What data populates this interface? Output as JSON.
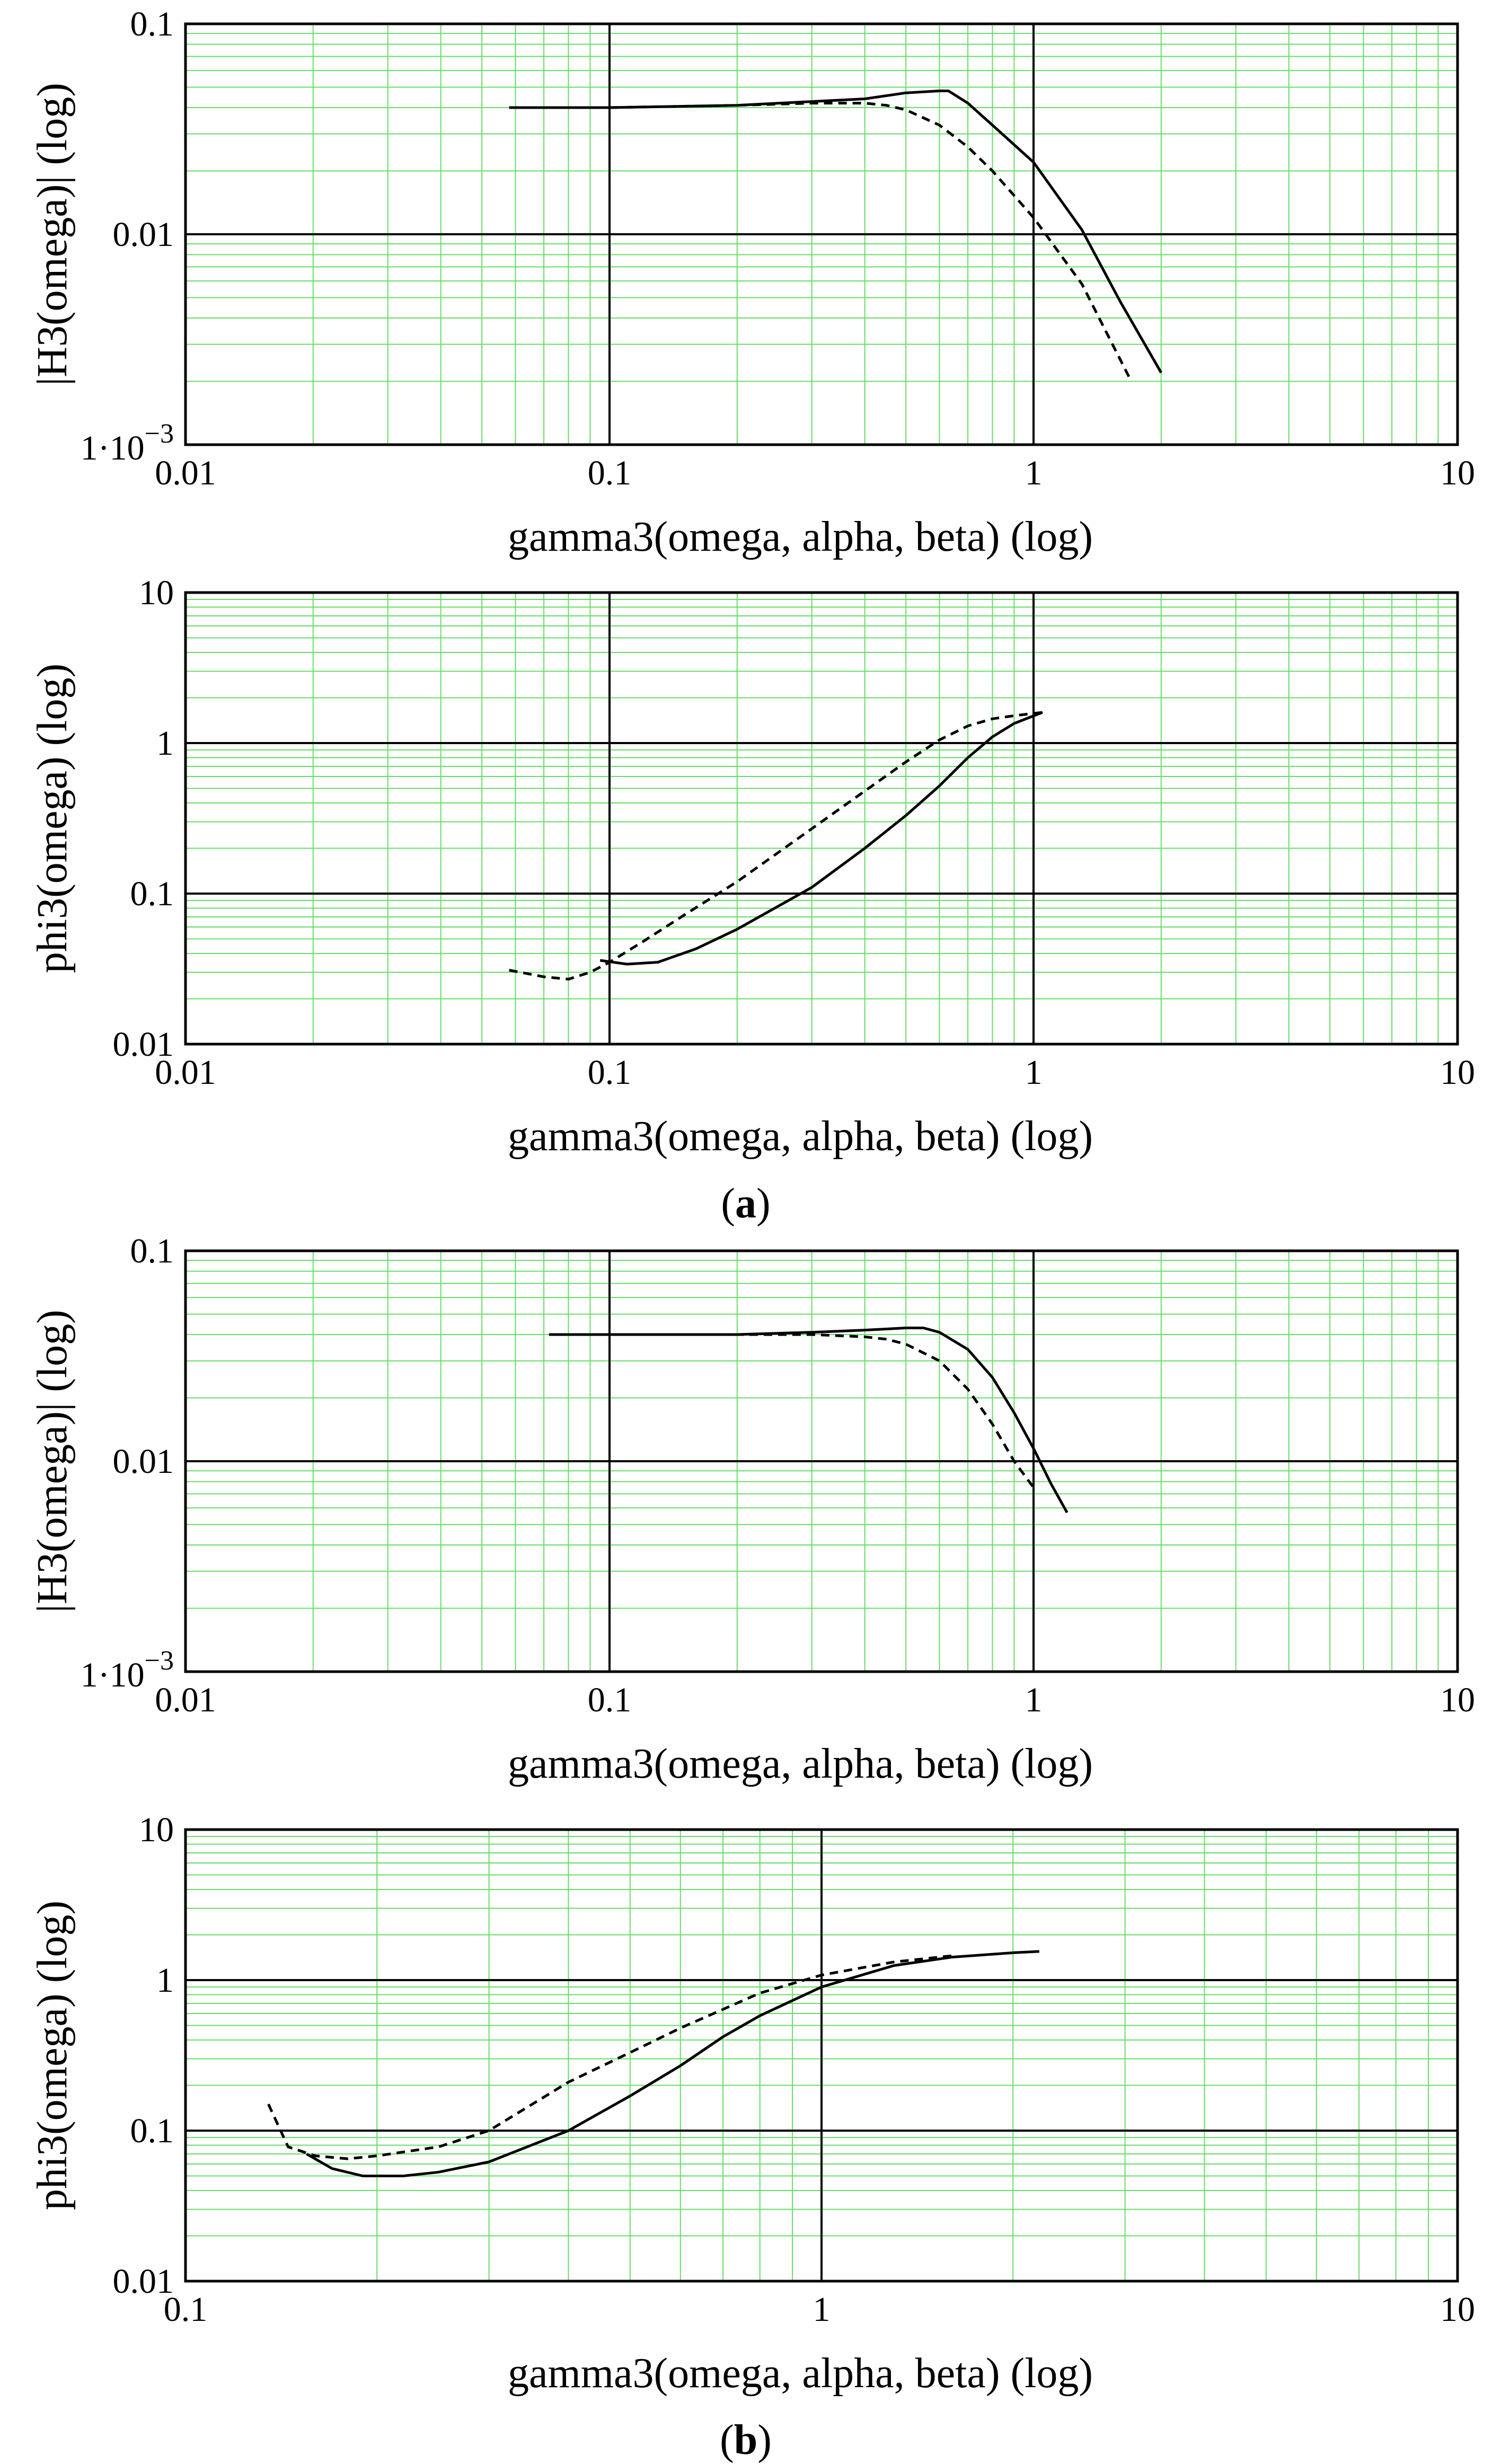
{
  "figure": {
    "panel_labels": [
      "(a)",
      "(b)"
    ]
  },
  "chart_data": [
    {
      "type": "line",
      "title": "",
      "xlabel": "gamma3(omega, alpha, beta) (log)",
      "ylabel": "|H3(omega)| (log)",
      "xscale": "log",
      "yscale": "log",
      "xlim": [
        0.01,
        10
      ],
      "ylim": [
        0.001,
        0.1
      ],
      "x_ticks": [
        0.01,
        0.1,
        1,
        10
      ],
      "x_tick_labels": [
        "0.01",
        "0.1",
        "1",
        "10"
      ],
      "y_ticks": [
        0.001,
        0.01,
        0.1
      ],
      "y_tick_labels": [
        "1·10",
        "0.01",
        "0.1"
      ],
      "y_tick_exponent": "−3",
      "grid": true,
      "colors": {
        "major_grid": "#000000",
        "minor_grid": "#66dd66",
        "curve": "#000000"
      },
      "series": [
        {
          "name": "solid",
          "style": "solid",
          "x": [
            0.058,
            0.1,
            0.2,
            0.4,
            0.5,
            0.6,
            0.63,
            0.7,
            0.8,
            1.0,
            1.3,
            1.6,
            2.0
          ],
          "y": [
            0.04,
            0.04,
            0.041,
            0.044,
            0.047,
            0.048,
            0.048,
            0.042,
            0.033,
            0.022,
            0.0105,
            0.0048,
            0.0022
          ]
        },
        {
          "name": "dashed",
          "style": "dashed",
          "x": [
            0.058,
            0.1,
            0.2,
            0.3,
            0.4,
            0.45,
            0.5,
            0.6,
            0.7,
            0.8,
            1.0,
            1.3,
            1.7
          ],
          "y": [
            0.04,
            0.04,
            0.041,
            0.042,
            0.042,
            0.041,
            0.039,
            0.033,
            0.026,
            0.02,
            0.012,
            0.0058,
            0.002
          ]
        }
      ]
    },
    {
      "type": "line",
      "title": "",
      "xlabel": "gamma3(omega, alpha, beta) (log)",
      "ylabel": "phi3(omega) (log)",
      "xscale": "log",
      "yscale": "log",
      "xlim": [
        0.01,
        10
      ],
      "ylim": [
        0.01,
        10
      ],
      "x_ticks": [
        0.01,
        0.1,
        1,
        10
      ],
      "x_tick_labels": [
        "0.01",
        "0.1",
        "1",
        "10"
      ],
      "y_ticks": [
        0.01,
        0.1,
        1,
        10
      ],
      "y_tick_labels": [
        "0.01",
        "0.1",
        "1",
        "10"
      ],
      "grid": true,
      "colors": {
        "major_grid": "#000000",
        "minor_grid": "#66dd66",
        "curve": "#000000"
      },
      "series": [
        {
          "name": "solid",
          "style": "solid",
          "x": [
            0.095,
            0.11,
            0.13,
            0.16,
            0.2,
            0.3,
            0.4,
            0.5,
            0.6,
            0.7,
            0.8,
            0.9,
            1.05
          ],
          "y": [
            0.036,
            0.034,
            0.035,
            0.043,
            0.058,
            0.11,
            0.2,
            0.33,
            0.52,
            0.8,
            1.1,
            1.35,
            1.6
          ]
        },
        {
          "name": "dashed",
          "style": "dashed",
          "x": [
            0.058,
            0.07,
            0.08,
            0.09,
            0.1,
            0.12,
            0.15,
            0.2,
            0.3,
            0.4,
            0.5,
            0.6,
            0.7,
            0.8,
            0.9,
            1.05
          ],
          "y": [
            0.031,
            0.028,
            0.027,
            0.03,
            0.035,
            0.048,
            0.072,
            0.12,
            0.27,
            0.48,
            0.75,
            1.05,
            1.3,
            1.45,
            1.52,
            1.6
          ]
        }
      ]
    },
    {
      "type": "line",
      "title": "",
      "xlabel": "gamma3(omega, alpha, beta) (log)",
      "ylabel": "|H3(omega)| (log)",
      "xscale": "log",
      "yscale": "log",
      "xlim": [
        0.01,
        10
      ],
      "ylim": [
        0.001,
        0.1
      ],
      "x_ticks": [
        0.01,
        0.1,
        1,
        10
      ],
      "x_tick_labels": [
        "0.01",
        "0.1",
        "1",
        "10"
      ],
      "y_ticks": [
        0.001,
        0.01,
        0.1
      ],
      "y_tick_labels": [
        "1·10",
        "0.01",
        "0.1"
      ],
      "y_tick_exponent": "−3",
      "grid": true,
      "colors": {
        "major_grid": "#000000",
        "minor_grid": "#66dd66",
        "curve": "#000000"
      },
      "series": [
        {
          "name": "solid",
          "style": "solid",
          "x": [
            0.072,
            0.1,
            0.2,
            0.3,
            0.4,
            0.5,
            0.55,
            0.6,
            0.7,
            0.8,
            0.9,
            1.0,
            1.1,
            1.2
          ],
          "y": [
            0.04,
            0.04,
            0.04,
            0.041,
            0.042,
            0.043,
            0.043,
            0.041,
            0.034,
            0.025,
            0.017,
            0.0115,
            0.0078,
            0.0057
          ]
        },
        {
          "name": "dashed",
          "style": "dashed",
          "x": [
            0.072,
            0.1,
            0.2,
            0.3,
            0.4,
            0.45,
            0.5,
            0.6,
            0.7,
            0.8,
            0.9,
            1.0
          ],
          "y": [
            0.04,
            0.04,
            0.04,
            0.04,
            0.039,
            0.038,
            0.036,
            0.03,
            0.022,
            0.015,
            0.01,
            0.0075
          ]
        }
      ]
    },
    {
      "type": "line",
      "title": "",
      "xlabel": "gamma3(omega, alpha, beta) (log)",
      "ylabel": "phi3(omega) (log)",
      "xscale": "log",
      "yscale": "log",
      "xlim": [
        0.1,
        10
      ],
      "ylim": [
        0.01,
        10
      ],
      "x_ticks": [
        0.1,
        1,
        10
      ],
      "x_tick_labels": [
        "0.1",
        "1",
        "10"
      ],
      "y_ticks": [
        0.01,
        0.1,
        1,
        10
      ],
      "y_tick_labels": [
        "0.01",
        "0.1",
        "1",
        "10"
      ],
      "grid": true,
      "colors": {
        "major_grid": "#000000",
        "minor_grid": "#66dd66",
        "curve": "#000000"
      },
      "series": [
        {
          "name": "solid",
          "style": "solid",
          "x": [
            0.155,
            0.17,
            0.19,
            0.22,
            0.25,
            0.3,
            0.4,
            0.5,
            0.6,
            0.7,
            0.8,
            1.0,
            1.3,
            1.6,
            2.0,
            2.2
          ],
          "y": [
            0.07,
            0.056,
            0.05,
            0.05,
            0.053,
            0.062,
            0.1,
            0.17,
            0.27,
            0.42,
            0.58,
            0.9,
            1.25,
            1.42,
            1.52,
            1.55
          ]
        },
        {
          "name": "dashed",
          "style": "dashed",
          "x": [
            0.135,
            0.145,
            0.16,
            0.18,
            0.2,
            0.25,
            0.3,
            0.4,
            0.5,
            0.6,
            0.8,
            1.0,
            1.3,
            1.6
          ],
          "y": [
            0.15,
            0.078,
            0.068,
            0.065,
            0.068,
            0.078,
            0.1,
            0.21,
            0.33,
            0.48,
            0.82,
            1.08,
            1.32,
            1.45
          ]
        }
      ]
    }
  ]
}
